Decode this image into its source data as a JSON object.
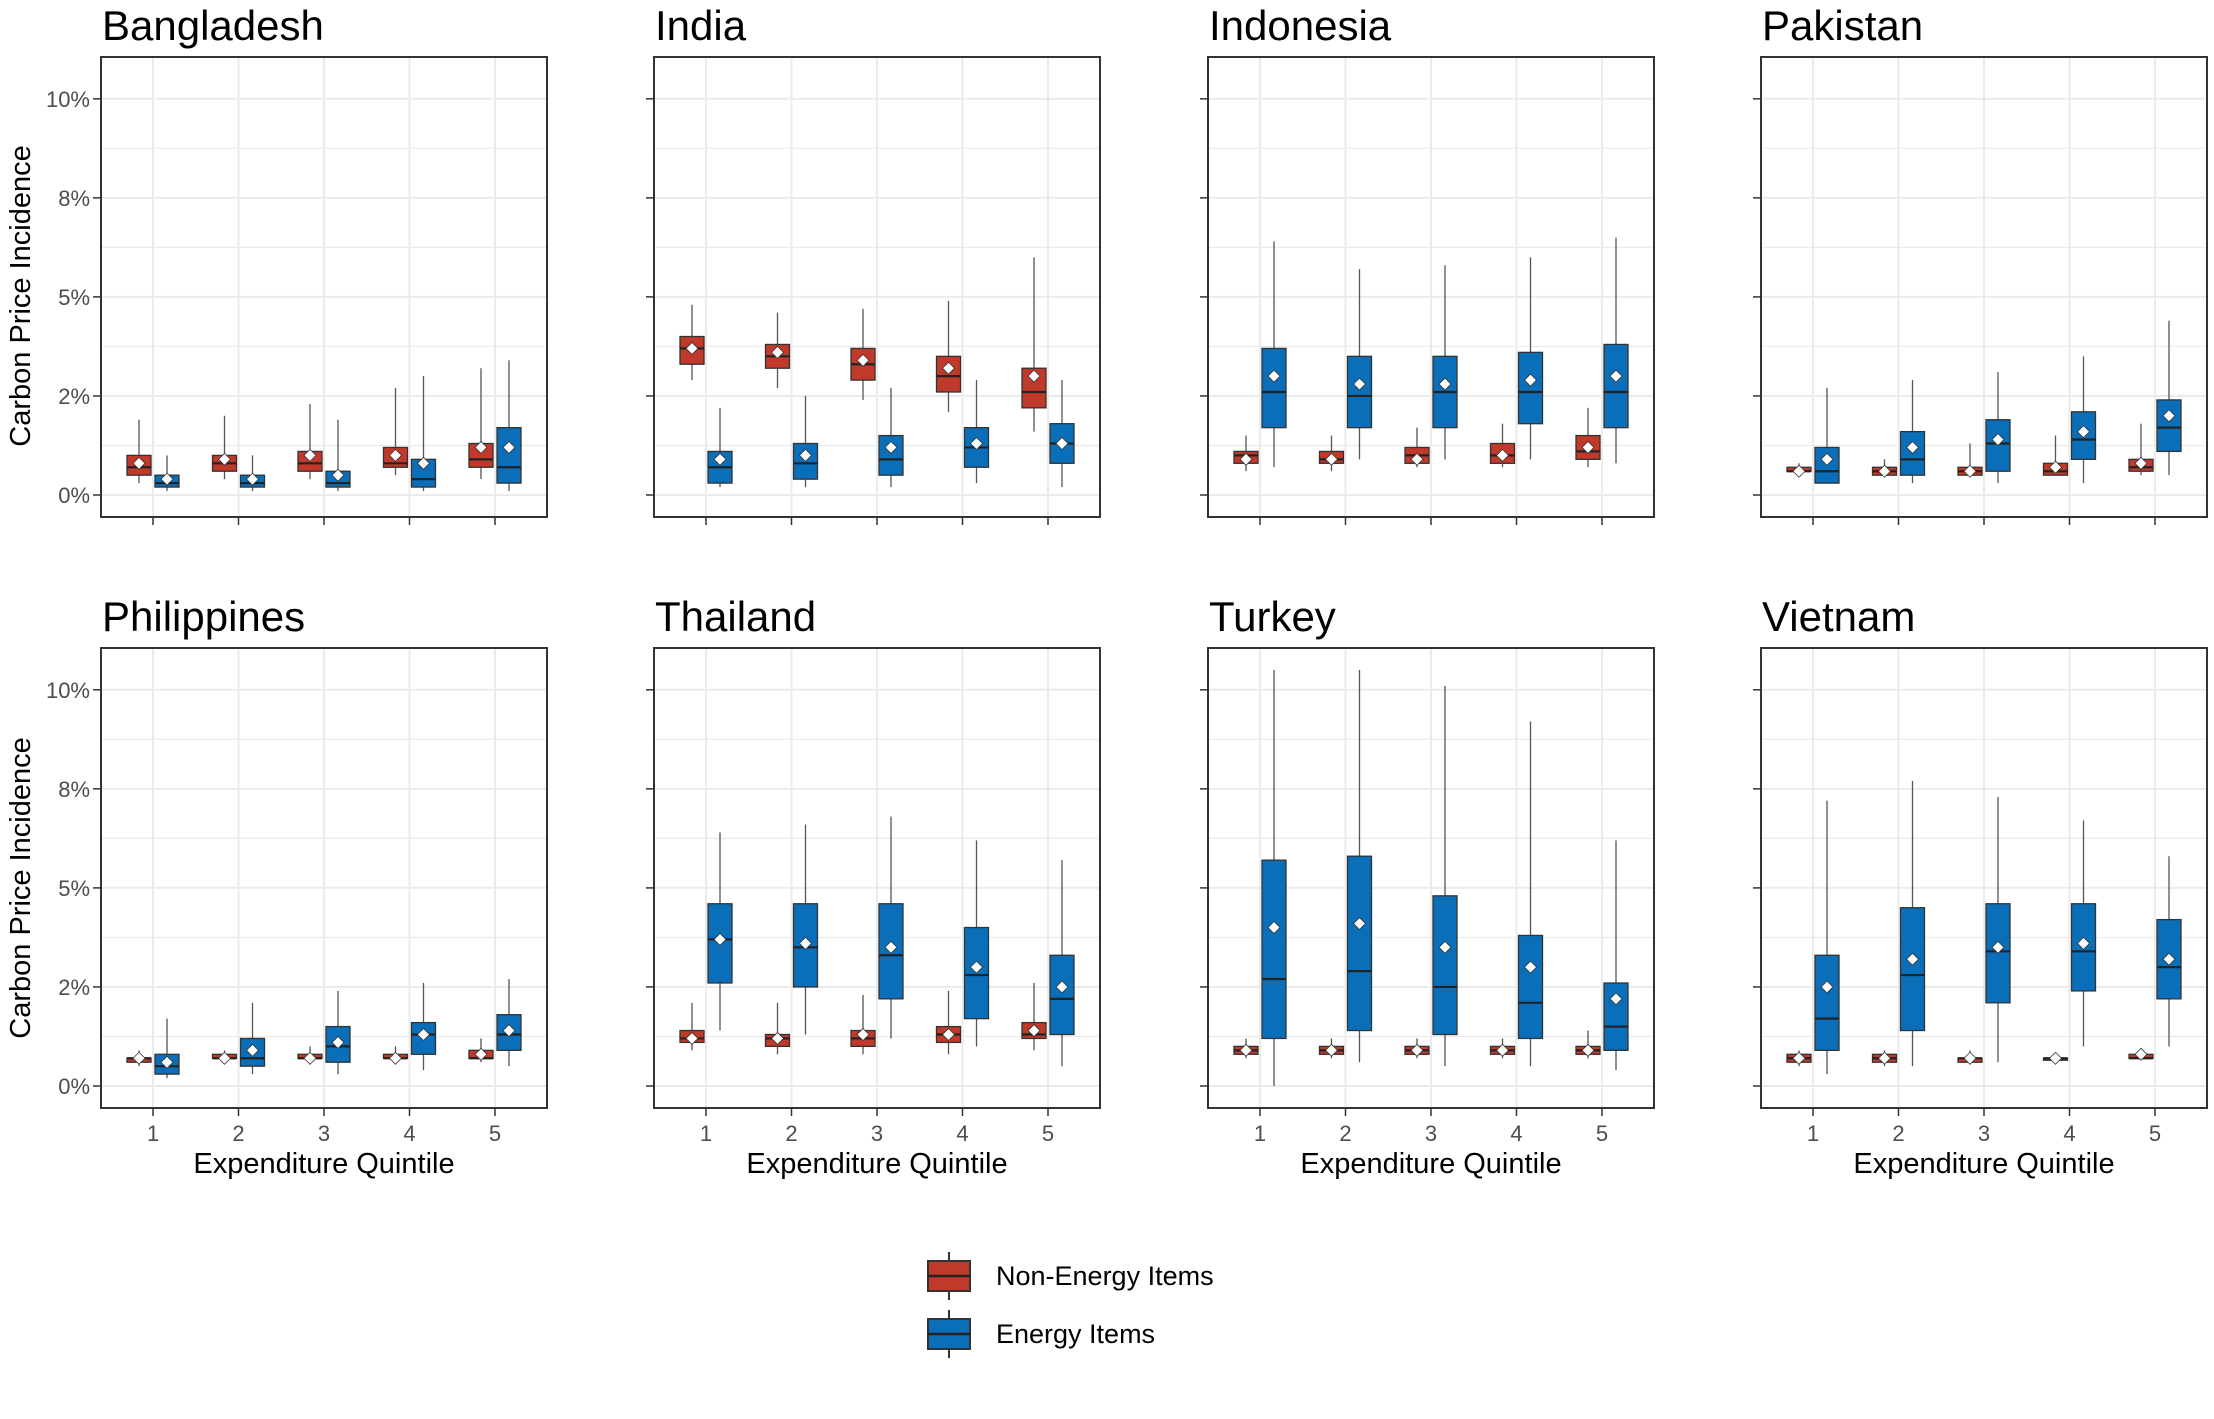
{
  "colors": {
    "non_energy": "#c0392b",
    "energy": "#0a6fb8",
    "grid": "#ebebeb",
    "panel_border": "#333333"
  },
  "chart_data": {
    "type": "boxplot",
    "title": "",
    "xlabel": "Expenditure Quintile",
    "ylabel": "Carbon Price Incidence",
    "categories": [
      "1",
      "2",
      "3",
      "4",
      "5"
    ],
    "ylim": [
      0,
      10.5
    ],
    "yticks": [
      0,
      2.5,
      5,
      7.5,
      10
    ],
    "ytick_labels": [
      "0%",
      "2%",
      "5%",
      "8%",
      "10%"
    ],
    "grid": true,
    "legend_position": "bottom",
    "legend": [
      {
        "key": "non_energy",
        "label": "Non-Energy Items"
      },
      {
        "key": "energy",
        "label": "Energy Items"
      }
    ],
    "panels": [
      {
        "title": "Bangladesh",
        "non_energy": [
          [
            0.3,
            0.5,
            0.7,
            1.0,
            1.9,
            0.8
          ],
          [
            0.4,
            0.6,
            0.8,
            1.0,
            2.0,
            0.9
          ],
          [
            0.4,
            0.6,
            0.8,
            1.1,
            2.3,
            1.0
          ],
          [
            0.5,
            0.7,
            0.8,
            1.2,
            2.7,
            1.0
          ],
          [
            0.4,
            0.7,
            0.9,
            1.3,
            3.2,
            1.2
          ]
        ],
        "energy": [
          [
            0.1,
            0.2,
            0.3,
            0.5,
            1.0,
            0.4
          ],
          [
            0.1,
            0.2,
            0.3,
            0.5,
            1.0,
            0.4
          ],
          [
            0.1,
            0.2,
            0.3,
            0.6,
            1.9,
            0.5
          ],
          [
            0.1,
            0.2,
            0.4,
            0.9,
            3.0,
            0.8
          ],
          [
            0.1,
            0.3,
            0.7,
            1.7,
            3.4,
            1.2
          ]
        ]
      },
      {
        "title": "India",
        "non_energy": [
          [
            2.9,
            3.3,
            3.7,
            4.0,
            4.8,
            3.7
          ],
          [
            2.7,
            3.2,
            3.5,
            3.8,
            4.6,
            3.6
          ],
          [
            2.4,
            2.9,
            3.3,
            3.7,
            4.7,
            3.4
          ],
          [
            2.1,
            2.6,
            3.0,
            3.5,
            4.9,
            3.2
          ],
          [
            1.6,
            2.2,
            2.6,
            3.2,
            6.0,
            3.0
          ]
        ],
        "energy": [
          [
            0.2,
            0.3,
            0.7,
            1.1,
            2.2,
            0.9
          ],
          [
            0.2,
            0.4,
            0.8,
            1.3,
            2.5,
            1.0
          ],
          [
            0.2,
            0.5,
            0.9,
            1.5,
            2.7,
            1.2
          ],
          [
            0.3,
            0.7,
            1.2,
            1.7,
            2.9,
            1.3
          ],
          [
            0.2,
            0.8,
            1.3,
            1.8,
            2.9,
            1.3
          ]
        ]
      },
      {
        "title": "Indonesia",
        "non_energy": [
          [
            0.6,
            0.8,
            1.0,
            1.1,
            1.5,
            0.9
          ],
          [
            0.6,
            0.8,
            0.9,
            1.1,
            1.5,
            0.9
          ],
          [
            0.7,
            0.8,
            1.0,
            1.2,
            1.7,
            0.9
          ],
          [
            0.7,
            0.8,
            1.0,
            1.3,
            1.8,
            1.0
          ],
          [
            0.7,
            0.9,
            1.1,
            1.5,
            2.2,
            1.2
          ]
        ],
        "energy": [
          [
            0.7,
            1.7,
            2.6,
            3.7,
            6.4,
            3.0
          ],
          [
            0.9,
            1.7,
            2.5,
            3.5,
            5.7,
            2.8
          ],
          [
            0.9,
            1.7,
            2.6,
            3.5,
            5.8,
            2.8
          ],
          [
            0.9,
            1.8,
            2.6,
            3.6,
            6.0,
            2.9
          ],
          [
            0.8,
            1.7,
            2.6,
            3.8,
            6.5,
            3.0
          ]
        ]
      },
      {
        "title": "Pakistan",
        "non_energy": [
          [
            0.5,
            0.6,
            0.6,
            0.7,
            0.8,
            0.6
          ],
          [
            0.5,
            0.5,
            0.6,
            0.7,
            0.9,
            0.6
          ],
          [
            0.5,
            0.5,
            0.6,
            0.7,
            1.3,
            0.6
          ],
          [
            0.5,
            0.5,
            0.6,
            0.8,
            1.5,
            0.7
          ],
          [
            0.5,
            0.6,
            0.7,
            0.9,
            1.8,
            0.8
          ]
        ],
        "energy": [
          [
            0.3,
            0.3,
            0.6,
            1.2,
            2.7,
            0.9
          ],
          [
            0.3,
            0.5,
            0.9,
            1.6,
            2.9,
            1.2
          ],
          [
            0.3,
            0.6,
            1.3,
            1.9,
            3.1,
            1.4
          ],
          [
            0.3,
            0.9,
            1.4,
            2.1,
            3.5,
            1.6
          ],
          [
            0.5,
            1.1,
            1.7,
            2.4,
            4.4,
            2.0
          ]
        ]
      },
      {
        "title": "Philippines",
        "non_energy": [
          [
            0.5,
            0.6,
            0.7,
            0.7,
            0.9,
            0.7
          ],
          [
            0.6,
            0.7,
            0.7,
            0.8,
            0.9,
            0.7
          ],
          [
            0.6,
            0.7,
            0.7,
            0.8,
            1.0,
            0.7
          ],
          [
            0.6,
            0.7,
            0.7,
            0.8,
            1.0,
            0.7
          ],
          [
            0.6,
            0.7,
            0.7,
            0.9,
            1.2,
            0.8
          ]
        ],
        "energy": [
          [
            0.2,
            0.3,
            0.5,
            0.8,
            1.7,
            0.6
          ],
          [
            0.3,
            0.5,
            0.7,
            1.2,
            2.1,
            0.9
          ],
          [
            0.3,
            0.6,
            1.0,
            1.5,
            2.4,
            1.1
          ],
          [
            0.4,
            0.8,
            1.3,
            1.6,
            2.6,
            1.3
          ],
          [
            0.5,
            0.9,
            1.3,
            1.8,
            2.7,
            1.4
          ]
        ]
      },
      {
        "title": "Thailand",
        "non_energy": [
          [
            0.9,
            1.1,
            1.2,
            1.4,
            2.1,
            1.2
          ],
          [
            0.8,
            1.0,
            1.2,
            1.3,
            2.1,
            1.2
          ],
          [
            0.8,
            1.0,
            1.2,
            1.4,
            2.3,
            1.3
          ],
          [
            0.8,
            1.1,
            1.3,
            1.5,
            2.4,
            1.3
          ],
          [
            0.9,
            1.2,
            1.3,
            1.6,
            2.6,
            1.4
          ]
        ],
        "energy": [
          [
            1.4,
            2.6,
            3.7,
            4.6,
            6.4,
            3.7
          ],
          [
            1.3,
            2.5,
            3.5,
            4.6,
            6.6,
            3.6
          ],
          [
            1.2,
            2.2,
            3.3,
            4.6,
            6.8,
            3.5
          ],
          [
            1.0,
            1.7,
            2.8,
            4.0,
            6.2,
            3.0
          ],
          [
            0.5,
            1.3,
            2.2,
            3.3,
            5.7,
            2.5
          ]
        ]
      },
      {
        "title": "Turkey",
        "non_energy": [
          [
            0.7,
            0.8,
            0.9,
            1.0,
            1.2,
            0.9
          ],
          [
            0.7,
            0.8,
            0.9,
            1.0,
            1.2,
            0.9
          ],
          [
            0.7,
            0.8,
            0.9,
            1.0,
            1.2,
            0.9
          ],
          [
            0.7,
            0.8,
            0.9,
            1.0,
            1.2,
            0.9
          ],
          [
            0.7,
            0.8,
            0.9,
            1.0,
            1.4,
            0.9
          ]
        ],
        "energy": [
          [
            0.0,
            1.2,
            2.7,
            5.7,
            10.5,
            4.0
          ],
          [
            0.6,
            1.4,
            2.9,
            5.8,
            10.5,
            4.1
          ],
          [
            0.5,
            1.3,
            2.5,
            4.8,
            10.1,
            3.5
          ],
          [
            0.5,
            1.2,
            2.1,
            3.8,
            9.2,
            3.0
          ],
          [
            0.4,
            0.9,
            1.5,
            2.6,
            6.2,
            2.2
          ]
        ]
      },
      {
        "title": "Vietnam",
        "non_energy": [
          [
            0.5,
            0.6,
            0.7,
            0.8,
            0.9,
            0.7
          ],
          [
            0.5,
            0.6,
            0.7,
            0.8,
            0.9,
            0.7
          ],
          [
            0.6,
            0.6,
            0.7,
            0.7,
            0.9,
            0.7
          ],
          [
            0.6,
            0.7,
            0.7,
            0.7,
            0.8,
            0.7
          ],
          [
            0.7,
            0.7,
            0.7,
            0.8,
            0.9,
            0.8
          ]
        ],
        "energy": [
          [
            0.3,
            0.9,
            1.7,
            3.3,
            7.2,
            2.5
          ],
          [
            0.5,
            1.4,
            2.8,
            4.5,
            7.7,
            3.2
          ],
          [
            0.6,
            2.1,
            3.4,
            4.6,
            7.3,
            3.5
          ],
          [
            1.0,
            2.4,
            3.4,
            4.6,
            6.7,
            3.6
          ],
          [
            1.0,
            2.2,
            3.0,
            4.2,
            5.8,
            3.2
          ]
        ]
      }
    ]
  }
}
